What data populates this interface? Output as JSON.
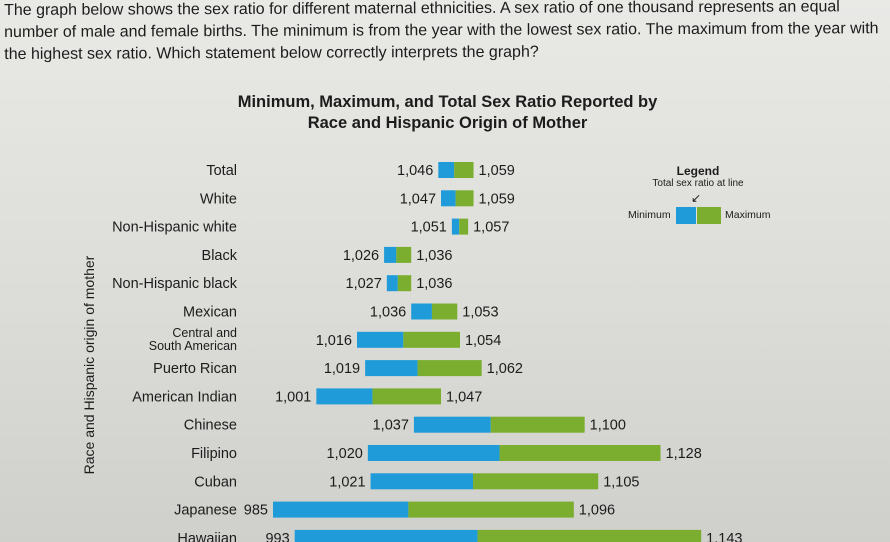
{
  "question": {
    "text": "The graph below shows the sex ratio for different maternal ethnicities. A sex ratio of one thousand represents an equal number of male and female births. The minimum is from the year with the lowest sex ratio. The maximum from the year with the highest sex ratio. Which statement below correctly interprets the graph?"
  },
  "chart_data": {
    "type": "bar",
    "title": "Minimum, Maximum, and Total Sex Ratio Reported by Race and Hispanic Origin of Mother",
    "ylabel": "Race and Hispanic origin of mother",
    "categories": [
      "Total",
      "White",
      "Non-Hispanic white",
      "Black",
      "Non-Hispanic black",
      "Mexican",
      "Central and South American",
      "Puerto Rican",
      "American Indian",
      "Chinese",
      "Filipino",
      "Cuban",
      "Japanese",
      "Hawaiian"
    ],
    "series": [
      {
        "name": "Minimum",
        "values": [
          1046,
          1047,
          1051,
          1026,
          1027,
          1036,
          1016,
          1019,
          1001,
          1037,
          1020,
          1021,
          985,
          993
        ]
      },
      {
        "name": "Maximum",
        "values": [
          1059,
          1059,
          1057,
          1036,
          1036,
          1053,
          1054,
          1062,
          1047,
          1100,
          1128,
          1105,
          1096,
          1143
        ]
      }
    ],
    "min_labels": [
      "1,046",
      "1,047",
      "1,051",
      "1,026",
      "1,027",
      "1,036",
      "1,016",
      "1,019",
      "1,001",
      "1,037",
      "1,020",
      "1,021",
      "985",
      "993"
    ],
    "max_labels": [
      "1,059",
      "1,059",
      "1,057",
      "1,036",
      "1,036",
      "1,053",
      "1,054",
      "1,062",
      "1,047",
      "1,100",
      "1,128",
      "1,105",
      "1,096",
      "1,143"
    ],
    "legend": {
      "title": "Legend",
      "subtitle": "Total sex ratio at line",
      "min_label": "Minimum",
      "max_label": "Maximum",
      "placement": "top-right"
    },
    "colors": {
      "minimum": "#1f9bd9",
      "maximum": "#7bae2e"
    }
  }
}
